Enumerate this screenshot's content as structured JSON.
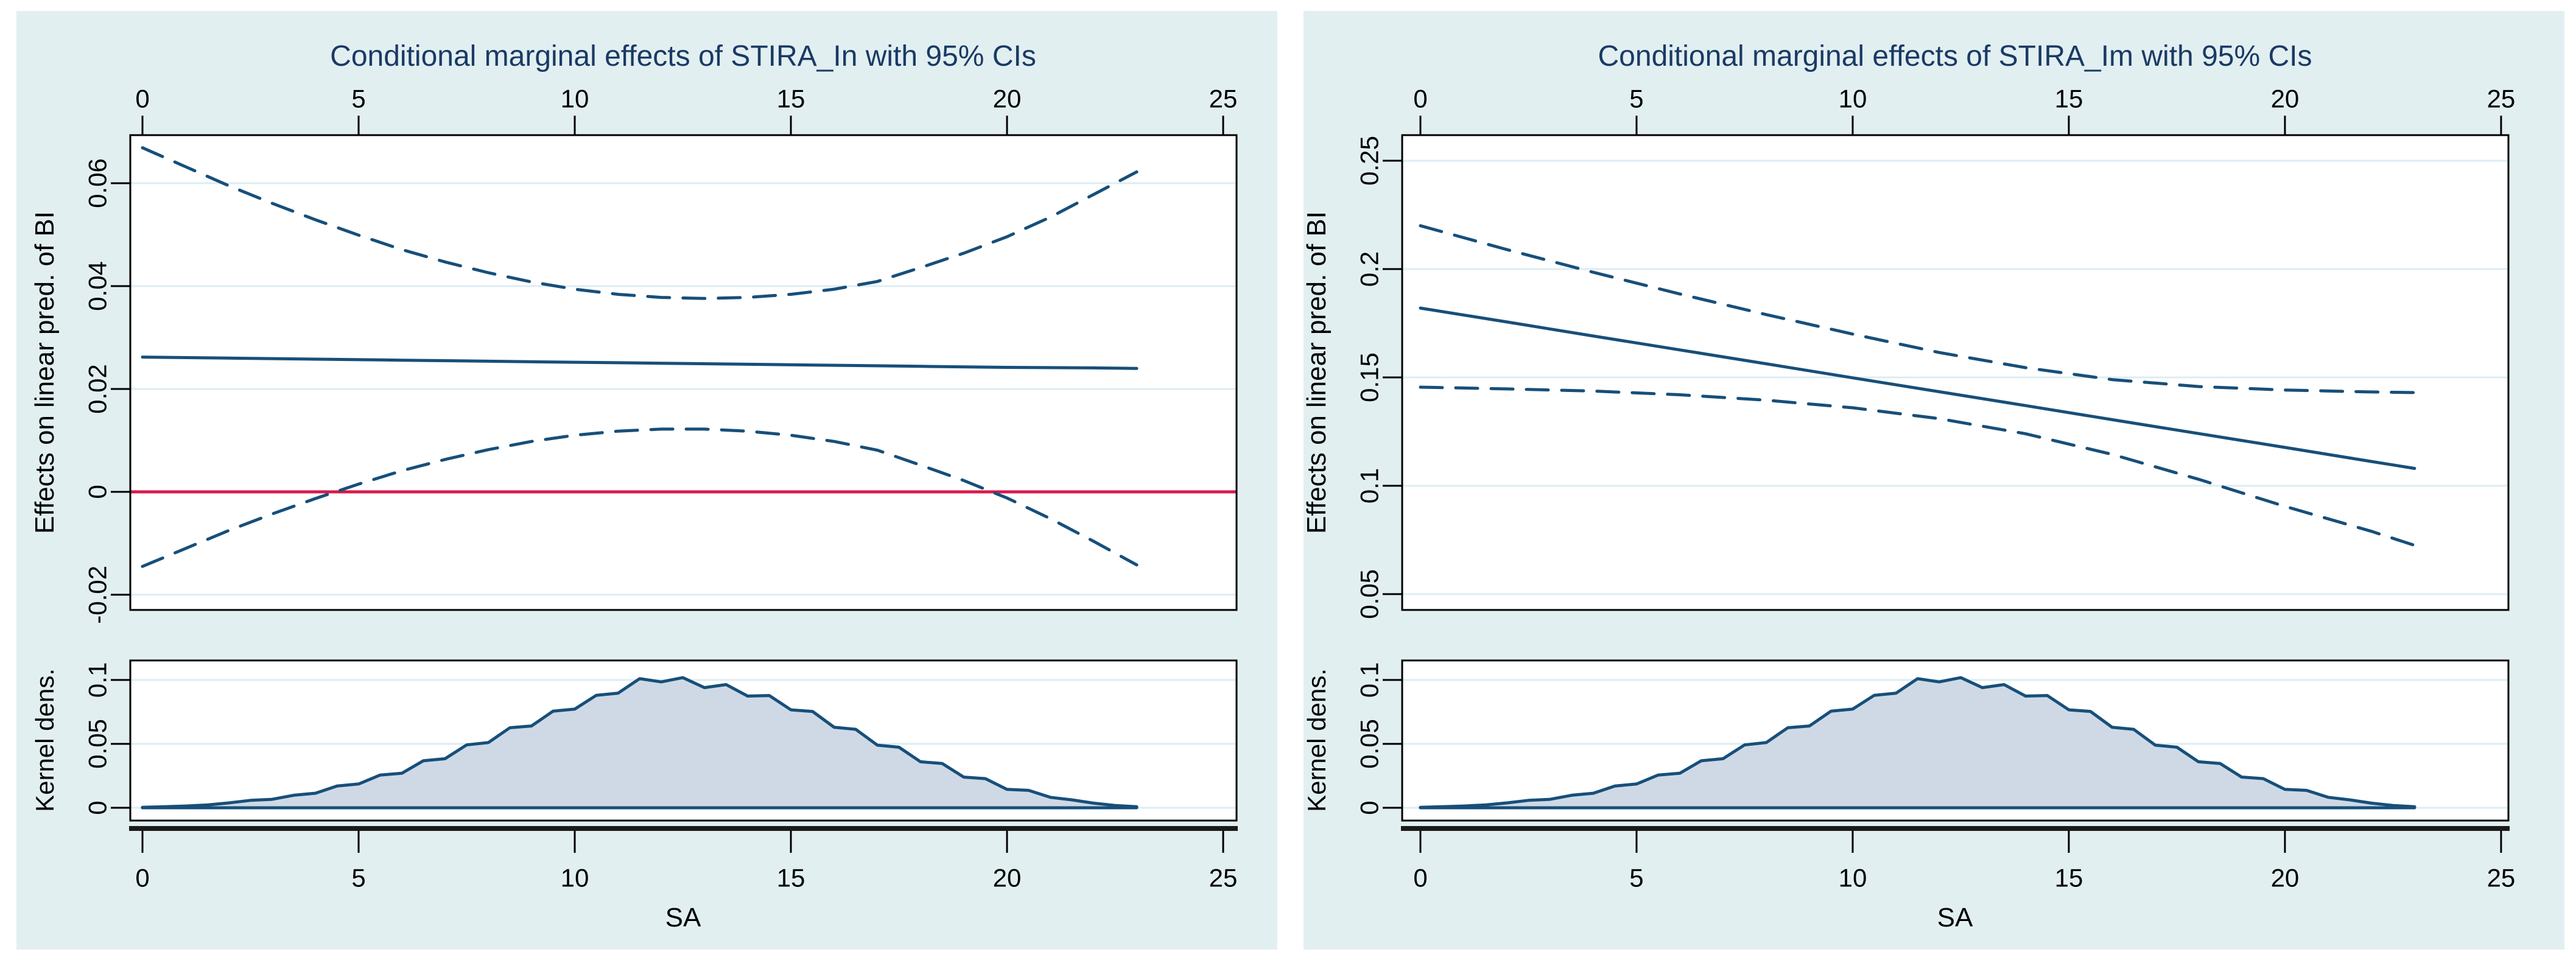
{
  "figure": {
    "background": "#ffffff",
    "description_left_title": "Conditional marginal effects of STIRA_In with 95% CIs",
    "description_right_title": "Conditional marginal effects of STIRA_Im with 95% CIs"
  },
  "colors": {
    "panel_bg": "#e2eff1",
    "plot_bg": "#ffffff",
    "grid": "#dcedf3",
    "axis": "#000000",
    "heavy_axis": "#1a1a1a",
    "navy": "#174f7a",
    "title_navy": "#1a3a64",
    "red": "#d8194b",
    "density_fill": "#cfd9e6",
    "text": "#000000"
  },
  "chart_data": [
    {
      "type": "line",
      "title": "Conditional marginal effects of STIRA_In with 95% CIs",
      "xlabel": "SA",
      "ylabel": "Effects on linear pred. of BI",
      "kernel_ylabel": "Kernel dens.",
      "legend_position": "none",
      "grid": true,
      "x_ticks": [
        0,
        5,
        10,
        15,
        20,
        25
      ],
      "x_tick_labels": [
        "0",
        "5",
        "10",
        "15",
        "20",
        "25"
      ],
      "xlim": [
        -0.2817,
        25.31
      ],
      "main": {
        "ylim": [
          -0.02296,
          0.06935
        ],
        "y_ticks": [
          -0.02,
          0,
          0.02,
          0.04,
          0.06
        ],
        "y_tick_labels": [
          "-0.02",
          "0",
          "0.02",
          "0.04",
          "0.06"
        ],
        "zero_line": 0,
        "series": [
          {
            "name": "upper_95ci",
            "style": "dashed",
            "points": [
              [
                0,
                0.0669
              ],
              [
                1,
                0.0632
              ],
              [
                2,
                0.0595
              ],
              [
                3,
                0.0561
              ],
              [
                4,
                0.0529
              ],
              [
                5,
                0.0499
              ],
              [
                6,
                0.0471
              ],
              [
                7,
                0.0447
              ],
              [
                8,
                0.0426
              ],
              [
                9,
                0.0408
              ],
              [
                10,
                0.0394
              ],
              [
                11,
                0.0384
              ],
              [
                12,
                0.0378
              ],
              [
                13,
                0.0376
              ],
              [
                14,
                0.0378
              ],
              [
                15,
                0.0384
              ],
              [
                16,
                0.0394
              ],
              [
                17,
                0.0409
              ],
              [
                18,
                0.0436
              ],
              [
                19,
                0.0464
              ],
              [
                20,
                0.0496
              ],
              [
                21,
                0.0534
              ],
              [
                22,
                0.0578
              ],
              [
                23,
                0.0622
              ]
            ]
          },
          {
            "name": "marginal_effect",
            "style": "solid",
            "points": [
              [
                0,
                0.0262
              ],
              [
                2,
                0.026
              ],
              [
                4,
                0.0258
              ],
              [
                6,
                0.0256
              ],
              [
                8,
                0.0254
              ],
              [
                10,
                0.0252
              ],
              [
                12,
                0.025
              ],
              [
                14,
                0.0248
              ],
              [
                16,
                0.0246
              ],
              [
                18,
                0.0244
              ],
              [
                20,
                0.0242
              ],
              [
                22,
                0.0241
              ],
              [
                23,
                0.024
              ]
            ]
          },
          {
            "name": "lower_95ci",
            "style": "dashed",
            "points": [
              [
                0,
                -0.0145
              ],
              [
                1,
                -0.011
              ],
              [
                2,
                -0.0075
              ],
              [
                3,
                -0.0043
              ],
              [
                4,
                -0.0013
              ],
              [
                5,
                0.0015
              ],
              [
                6,
                0.0041
              ],
              [
                7,
                0.0063
              ],
              [
                8,
                0.0082
              ],
              [
                9,
                0.0098
              ],
              [
                10,
                0.011
              ],
              [
                11,
                0.0118
              ],
              [
                12,
                0.0122
              ],
              [
                13,
                0.0122
              ],
              [
                14,
                0.0118
              ],
              [
                15,
                0.011
              ],
              [
                16,
                0.0098
              ],
              [
                17,
                0.0081
              ],
              [
                18,
                0.0052
              ],
              [
                19,
                0.0022
              ],
              [
                20,
                -0.0012
              ],
              [
                21,
                -0.0052
              ],
              [
                22,
                -0.0096
              ],
              [
                23,
                -0.0142
              ]
            ]
          }
        ]
      },
      "kernel": {
        "ylim": [
          -0.01,
          0.11524
        ],
        "y_ticks": [
          0,
          0.05,
          0.1
        ],
        "y_tick_labels": [
          "0",
          "0.05",
          "0.1"
        ],
        "density": [
          [
            0,
            0.0004
          ],
          [
            0.5,
            0.0008
          ],
          [
            1,
            0.0014
          ],
          [
            1.5,
            0.0022
          ],
          [
            2,
            0.0038
          ],
          [
            2.5,
            0.0058
          ],
          [
            3,
            0.0066
          ],
          [
            3.5,
            0.0098
          ],
          [
            4,
            0.0114
          ],
          [
            4.5,
            0.017
          ],
          [
            5,
            0.0186
          ],
          [
            5.5,
            0.0256
          ],
          [
            6,
            0.027
          ],
          [
            6.5,
            0.0368
          ],
          [
            7,
            0.0384
          ],
          [
            7.5,
            0.0492
          ],
          [
            8,
            0.051
          ],
          [
            8.5,
            0.0626
          ],
          [
            9,
            0.064
          ],
          [
            9.5,
            0.0756
          ],
          [
            10,
            0.0772
          ],
          [
            10.5,
            0.088
          ],
          [
            11,
            0.0896
          ],
          [
            11.5,
            0.101
          ],
          [
            12,
            0.0985
          ],
          [
            12.5,
            0.1018
          ],
          [
            13,
            0.094
          ],
          [
            13.5,
            0.0964
          ],
          [
            14,
            0.0874
          ],
          [
            14.5,
            0.0878
          ],
          [
            15,
            0.0766
          ],
          [
            15.5,
            0.0754
          ],
          [
            16,
            0.063
          ],
          [
            16.5,
            0.0614
          ],
          [
            17,
            0.049
          ],
          [
            17.5,
            0.0474
          ],
          [
            18,
            0.036
          ],
          [
            18.5,
            0.0346
          ],
          [
            19,
            0.024
          ],
          [
            19.5,
            0.0228
          ],
          [
            20,
            0.0144
          ],
          [
            20.5,
            0.0136
          ],
          [
            21,
            0.0082
          ],
          [
            21.5,
            0.0062
          ],
          [
            22,
            0.0036
          ],
          [
            22.5,
            0.0018
          ],
          [
            23,
            0.0008
          ]
        ]
      }
    },
    {
      "type": "line",
      "title": "Conditional marginal effects of STIRA_Im with 95% CIs",
      "xlabel": "SA",
      "ylabel": "Effects on linear pred. of BI",
      "kernel_ylabel": "Kernel dens.",
      "legend_position": "none",
      "grid": true,
      "x_ticks": [
        0,
        5,
        10,
        15,
        20,
        25
      ],
      "x_tick_labels": [
        "0",
        "5",
        "10",
        "15",
        "20",
        "25"
      ],
      "xlim": [
        -0.4225,
        25.17
      ],
      "main": {
        "ylim": [
          0.0427,
          0.2618
        ],
        "y_ticks": [
          0.05,
          0.1,
          0.15,
          0.2,
          0.25
        ],
        "y_tick_labels": [
          "0.05",
          "0.1",
          "0.15",
          "0.2",
          "0.25"
        ],
        "zero_line": null,
        "series": [
          {
            "name": "upper_95ci",
            "style": "dashed",
            "points": [
              [
                0,
                0.22
              ],
              [
                2,
                0.209
              ],
              [
                4,
                0.1985
              ],
              [
                6,
                0.1885
              ],
              [
                8,
                0.179
              ],
              [
                10,
                0.17
              ],
              [
                12,
                0.1615
              ],
              [
                14,
                0.1545
              ],
              [
                16,
                0.149
              ],
              [
                18,
                0.1458
              ],
              [
                20,
                0.1442
              ],
              [
                22,
                0.1433
              ],
              [
                23,
                0.143
              ]
            ]
          },
          {
            "name": "marginal_effect",
            "style": "solid",
            "points": [
              [
                0,
                0.182
              ],
              [
                2,
                0.1756
              ],
              [
                4,
                0.1691
              ],
              [
                6,
                0.1627
              ],
              [
                8,
                0.1563
              ],
              [
                10,
                0.1498
              ],
              [
                12,
                0.1434
              ],
              [
                14,
                0.137
              ],
              [
                16,
                0.1305
              ],
              [
                18,
                0.1241
              ],
              [
                20,
                0.1177
              ],
              [
                22,
                0.1112
              ],
              [
                23,
                0.108
              ]
            ]
          },
          {
            "name": "lower_95ci",
            "style": "dashed",
            "points": [
              [
                0,
                0.1455
              ],
              [
                2,
                0.1447
              ],
              [
                4,
                0.1437
              ],
              [
                6,
                0.142
              ],
              [
                8,
                0.1395
              ],
              [
                10,
                0.136
              ],
              [
                12,
                0.131
              ],
              [
                14,
                0.124
              ],
              [
                16,
                0.1145
              ],
              [
                18,
                0.103
              ],
              [
                20,
                0.0905
              ],
              [
                22,
                0.079
              ],
              [
                23,
                0.0725
              ]
            ]
          }
        ]
      },
      "kernel": {
        "ylim": [
          -0.01,
          0.11524
        ],
        "y_ticks": [
          0,
          0.05,
          0.1
        ],
        "y_tick_labels": [
          "0",
          "0.05",
          "0.1"
        ],
        "density": [
          [
            0,
            0.0004
          ],
          [
            0.5,
            0.0008
          ],
          [
            1,
            0.0014
          ],
          [
            1.5,
            0.0022
          ],
          [
            2,
            0.0038
          ],
          [
            2.5,
            0.0058
          ],
          [
            3,
            0.0066
          ],
          [
            3.5,
            0.0098
          ],
          [
            4,
            0.0114
          ],
          [
            4.5,
            0.017
          ],
          [
            5,
            0.0186
          ],
          [
            5.5,
            0.0256
          ],
          [
            6,
            0.027
          ],
          [
            6.5,
            0.0368
          ],
          [
            7,
            0.0384
          ],
          [
            7.5,
            0.0492
          ],
          [
            8,
            0.051
          ],
          [
            8.5,
            0.0626
          ],
          [
            9,
            0.064
          ],
          [
            9.5,
            0.0756
          ],
          [
            10,
            0.0772
          ],
          [
            10.5,
            0.088
          ],
          [
            11,
            0.0896
          ],
          [
            11.5,
            0.101
          ],
          [
            12,
            0.0985
          ],
          [
            12.5,
            0.1018
          ],
          [
            13,
            0.094
          ],
          [
            13.5,
            0.0964
          ],
          [
            14,
            0.0874
          ],
          [
            14.5,
            0.0878
          ],
          [
            15,
            0.0766
          ],
          [
            15.5,
            0.0754
          ],
          [
            16,
            0.063
          ],
          [
            16.5,
            0.0614
          ],
          [
            17,
            0.049
          ],
          [
            17.5,
            0.0474
          ],
          [
            18,
            0.036
          ],
          [
            18.5,
            0.0346
          ],
          [
            19,
            0.024
          ],
          [
            19.5,
            0.0228
          ],
          [
            20,
            0.0144
          ],
          [
            20.5,
            0.0136
          ],
          [
            21,
            0.0082
          ],
          [
            21.5,
            0.0062
          ],
          [
            22,
            0.0036
          ],
          [
            22.5,
            0.0018
          ],
          [
            23,
            0.0008
          ]
        ]
      }
    }
  ]
}
